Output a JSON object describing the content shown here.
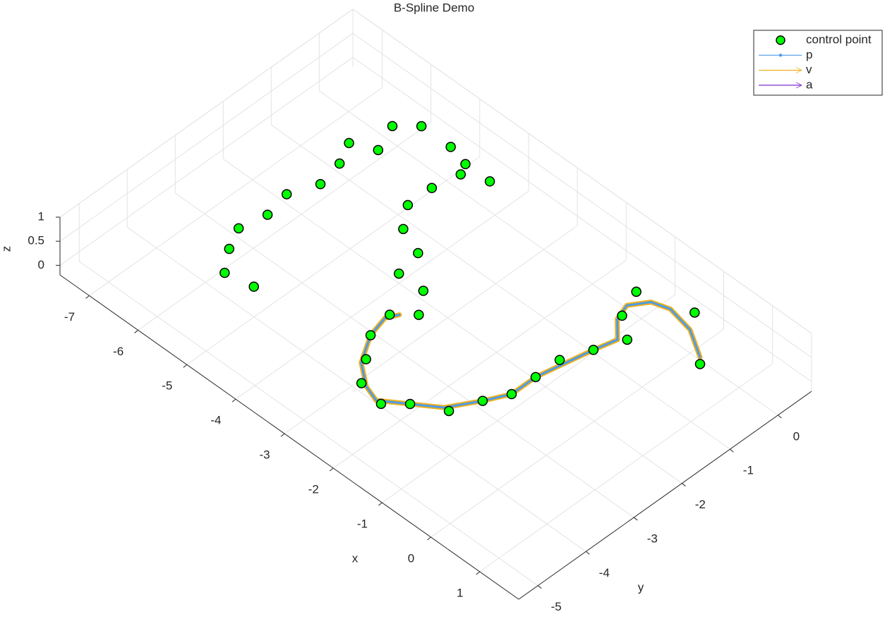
{
  "chart_data": {
    "type": "scatter3d",
    "title": "B-Spline Demo",
    "xlabel": "x",
    "ylabel": "y",
    "zlabel": "z",
    "xlim": [
      -7.6,
      1.8
    ],
    "ylim": [
      -5.4,
      0.7
    ],
    "zlim": [
      -0.2,
      1
    ],
    "xticks": [
      -7,
      -6,
      -5,
      -4,
      -3,
      -2,
      -1,
      0,
      1
    ],
    "yticks": [
      -5,
      -4,
      -3,
      -2,
      -1,
      0
    ],
    "zticks": [
      0,
      0.5,
      1
    ],
    "grid": true,
    "legend": "northeast",
    "series": [
      {
        "name": "control point",
        "kind": "scatter",
        "color": "#00ff00",
        "x": [
          -6.2,
          -5.9,
          -6.4,
          -6.0,
          -5.3,
          -4.9,
          -6.2,
          -4.8,
          -4.4,
          -6.1,
          -4.9,
          -6.3,
          -4.9,
          -6.2,
          -6.3,
          -4.6,
          -6.1,
          -4.1,
          -5.8,
          -4.0,
          -5.3,
          -3.5,
          -3.2,
          -3.5,
          -3.4,
          -3.1,
          -2.8,
          -2.3,
          -2.0,
          -1.5,
          -1.3,
          -1.1,
          -1.1,
          -1.1,
          -0.9,
          -1.3,
          -1.1,
          -0.7,
          -0.4,
          0.4
        ],
        "y": [
          0.1,
          0.4,
          -0.6,
          -0.4,
          0.4,
          0.3,
          -1.0,
          0.1,
          0.3,
          -1.5,
          -0.4,
          -2.0,
          -0.9,
          -2.5,
          -3.0,
          -1.3,
          -3.4,
          -1.5,
          -3.8,
          -2.0,
          -3.7,
          -2.0,
          -2.4,
          -2.7,
          -3.2,
          -3.6,
          -4.0,
          -4.1,
          -3.8,
          -3.5,
          -3.0,
          -2.6,
          -2.1,
          -1.6,
          -1.1,
          0.2,
          -0.3,
          -0.6,
          0.5,
          -0.2
        ],
        "z": [
          0,
          0,
          0,
          0,
          0,
          0,
          0,
          0,
          0,
          0,
          0,
          0,
          0,
          0,
          0,
          0,
          0,
          0,
          0,
          0,
          0,
          0,
          0,
          0,
          0,
          0,
          0,
          0,
          0,
          0,
          0,
          0,
          0,
          0,
          0,
          0,
          0,
          0,
          0,
          0
        ]
      },
      {
        "name": "p",
        "kind": "line",
        "color": "#4d9be6",
        "x": [
          -3.4,
          -3.5,
          -3.4,
          -3.1,
          -2.7,
          -2.4,
          -2.0,
          -1.6,
          -1.3,
          -1.1,
          -1.1,
          -1.0,
          -0.9,
          -0.8,
          -1.1,
          -1.2,
          -1.0,
          -0.7,
          -0.2,
          0.3
        ],
        "y": [
          -2.6,
          -2.8,
          -3.2,
          -3.7,
          -4.0,
          -4.1,
          -3.8,
          -3.5,
          -3.0,
          -2.6,
          -2.1,
          -1.6,
          -1.1,
          -0.7,
          -0.4,
          -0.1,
          0.2,
          0.3,
          0.2,
          -0.1
        ],
        "z": [
          0,
          0,
          0,
          0,
          0,
          0,
          0,
          0,
          0,
          0,
          0,
          0,
          0,
          0,
          0,
          0,
          0,
          0,
          0,
          0
        ]
      },
      {
        "name": "v",
        "kind": "quiver",
        "color": "#edb120",
        "x": [
          -3.4,
          -3.5,
          -3.4,
          -3.1,
          -2.7,
          -2.4,
          -2.0,
          -1.6,
          -1.3,
          -1.1,
          -1.1,
          -1.0,
          -0.9,
          -0.8,
          -1.1,
          -1.2,
          -1.0,
          -0.7,
          -0.2,
          0.3
        ],
        "y": [
          -2.6,
          -2.8,
          -3.2,
          -3.7,
          -4.0,
          -4.1,
          -3.8,
          -3.5,
          -3.0,
          -2.6,
          -2.1,
          -1.6,
          -1.1,
          -0.7,
          -0.4,
          -0.1,
          0.2,
          0.3,
          0.2,
          -0.1
        ],
        "z": [
          0,
          0,
          0,
          0,
          0,
          0,
          0,
          0,
          0,
          0,
          0,
          0,
          0,
          0,
          0,
          0,
          0,
          0,
          0,
          0
        ]
      },
      {
        "name": "a",
        "kind": "quiver",
        "color": "#7e2fd0",
        "x": [],
        "y": [],
        "z": []
      }
    ]
  }
}
